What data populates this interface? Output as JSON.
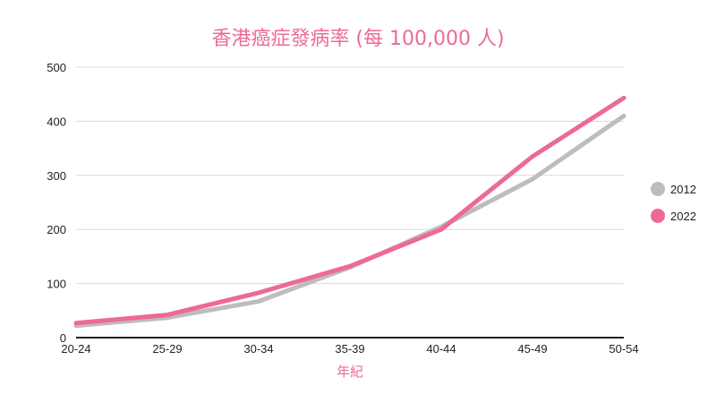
{
  "chart_data": {
    "type": "line",
    "title": "香港癌症發病率 (每 100,000 人)",
    "xlabel": "年紀",
    "ylabel": "",
    "categories": [
      "20-24",
      "25-29",
      "30-34",
      "35-39",
      "40-44",
      "45-49",
      "50-54"
    ],
    "ylim": [
      0,
      500
    ],
    "yticks": [
      0,
      100,
      200,
      300,
      400,
      500
    ],
    "grid": true,
    "legend_position": "right",
    "series": [
      {
        "name": "2012",
        "color": "#bdbdbd",
        "values": [
          22,
          37,
          67,
          130,
          205,
          293,
          410
        ]
      },
      {
        "name": "2022",
        "color": "#ee6a93",
        "values": [
          27,
          42,
          83,
          132,
          200,
          335,
          443
        ]
      }
    ]
  }
}
